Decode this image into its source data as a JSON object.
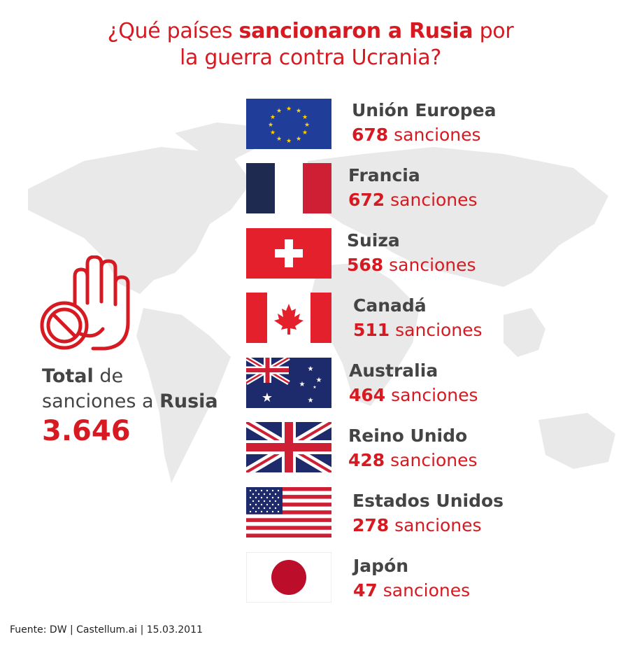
{
  "title": {
    "prefix": "¿Qué países ",
    "bold": "sancionaron a Rusia",
    "suffix_line1": " por",
    "line2": "la guerra contra Ucrania?"
  },
  "total": {
    "label_bold": "Total",
    "label_rest": " de",
    "line2_prefix": "sanciones a ",
    "line2_bold": "Rusia",
    "value": "3.646"
  },
  "source": "Fuente: DW | Castellum.ai | 15.03.2011",
  "colors": {
    "accent": "#d71a21",
    "text": "#444444",
    "map": "#e9e9e9"
  },
  "chart_data": {
    "type": "table",
    "unit_label": "sanciones",
    "categories": [
      "Unión Europea",
      "Francia",
      "Suiza",
      "Canadá",
      "Australia",
      "Reino Unido",
      "Estados Unidos",
      "Japón"
    ],
    "values": [
      678,
      672,
      568,
      511,
      464,
      428,
      278,
      47
    ],
    "total": 3646
  }
}
